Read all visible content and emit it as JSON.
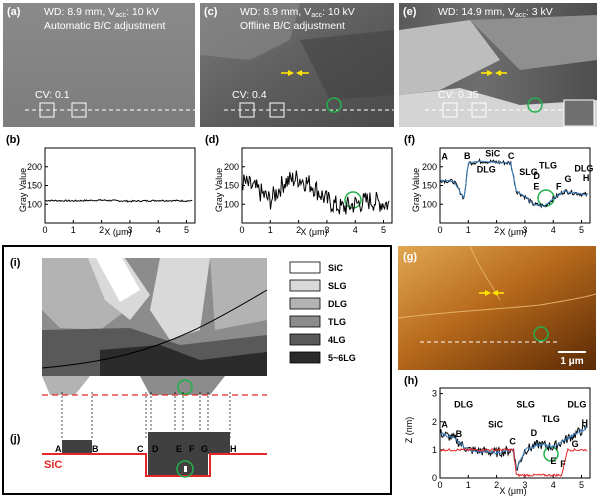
{
  "panels": {
    "a": {
      "label": "(a)",
      "wd": "WD: 8.9 mm, V",
      "sub": "acc",
      "v": ": 10 kV",
      "mode": "Automatic B/C adjustment",
      "cv": "CV: 0.1"
    },
    "c": {
      "label": "(c)",
      "wd": "WD: 8.9 mm, V",
      "sub": "acc",
      "v": ": 10 kV",
      "mode": "Offline B/C adjustment",
      "cv": "CV: 0.4"
    },
    "e": {
      "label": "(e)",
      "wd": "WD: 14.9 mm, V",
      "sub": "acc",
      "v": ": 3 kV",
      "cv": "CV: 0.35"
    },
    "b": {
      "label": "(b)"
    },
    "d": {
      "label": "(d)"
    },
    "f": {
      "label": "(f)",
      "annotations": [
        "A",
        "B",
        "SiC",
        "C",
        "DLG",
        "SLG",
        "D",
        "TLG",
        "E",
        "F",
        "G",
        "DLG",
        "H"
      ]
    },
    "i": {
      "label": "(i)"
    },
    "j": {
      "label": "(j)",
      "points": [
        "A",
        "B",
        "C",
        "D",
        "E",
        "F",
        "G",
        "H"
      ],
      "sic": "SiC"
    },
    "g": {
      "label": "(g)",
      "scale": "1 μm"
    },
    "h": {
      "label": "(h)",
      "annotations": [
        "A",
        "B",
        "DLG",
        "SiC",
        "SLG",
        "C",
        "D",
        "TLG",
        "E",
        "F",
        "DLG",
        "G",
        "H"
      ]
    }
  },
  "legend": [
    "SiC",
    "SLG",
    "DLG",
    "TLG",
    "4LG",
    "5~6LG"
  ],
  "legend_colors": [
    "#ffffff",
    "#d9d9d9",
    "#b3b3b3",
    "#8c8c8c",
    "#595959",
    "#2b2b2b"
  ],
  "axes": {
    "gray_label": "Gray Value",
    "x_label": "X (μm)",
    "z_label": "Z (nm)",
    "x_ticks": [
      "0",
      "1",
      "2",
      "3",
      "4",
      "5"
    ],
    "gray_ticks": [
      "100",
      "150",
      "200"
    ],
    "z_ticks": [
      "0",
      "1",
      "2",
      "3"
    ]
  },
  "chart_data": [
    {
      "type": "line",
      "panel": "b",
      "ylabel": "Gray Value",
      "xlabel": "X (μm)",
      "xlim": [
        0,
        5.3
      ],
      "ylim": [
        50,
        250
      ],
      "x": [
        0,
        1,
        2,
        3,
        4,
        5.2
      ],
      "values": [
        110,
        109,
        111,
        108,
        110,
        109
      ]
    },
    {
      "type": "line",
      "panel": "d",
      "ylabel": "Gray Value",
      "xlabel": "X (μm)",
      "xlim": [
        0,
        5.3
      ],
      "ylim": [
        50,
        250
      ],
      "x": [
        0,
        0.5,
        1,
        1.5,
        2,
        2.5,
        3,
        3.5,
        4,
        4.5,
        5.2
      ],
      "values": [
        160,
        140,
        110,
        160,
        170,
        150,
        110,
        90,
        100,
        110,
        100
      ]
    },
    {
      "type": "line",
      "panel": "f",
      "ylabel": "Gray Value",
      "xlabel": "X (μm)",
      "xlim": [
        0,
        5.3
      ],
      "ylim": [
        50,
        250
      ],
      "x": [
        0,
        0.5,
        0.85,
        1.0,
        1.5,
        2.0,
        2.5,
        2.7,
        3.0,
        3.3,
        3.7,
        4.0,
        4.4,
        4.8,
        5.2
      ],
      "values": [
        165,
        160,
        115,
        210,
        215,
        212,
        210,
        135,
        120,
        100,
        95,
        115,
        135,
        130,
        125
      ]
    },
    {
      "type": "line",
      "panel": "h",
      "ylabel": "Z (nm)",
      "xlabel": "X (μm)",
      "xlim": [
        0,
        5.3
      ],
      "ylim": [
        0,
        3.2
      ],
      "series": [
        {
          "x": [
            0,
            0.5,
            1,
            2,
            2.6,
            2.7,
            3.0,
            3.5,
            4.0,
            4.5,
            5.2
          ],
          "values": [
            1.6,
            1.4,
            1.0,
            0.9,
            1.0,
            0.3,
            1.0,
            1.2,
            1.1,
            1.4,
            1.8
          ]
        },
        {
          "x": [
            0,
            1,
            2,
            2.6,
            2.7,
            4.3,
            4.5,
            5.2
          ],
          "values": [
            1.0,
            1.0,
            1.0,
            1.0,
            0.1,
            0.1,
            1.0,
            1.0
          ]
        }
      ]
    }
  ]
}
